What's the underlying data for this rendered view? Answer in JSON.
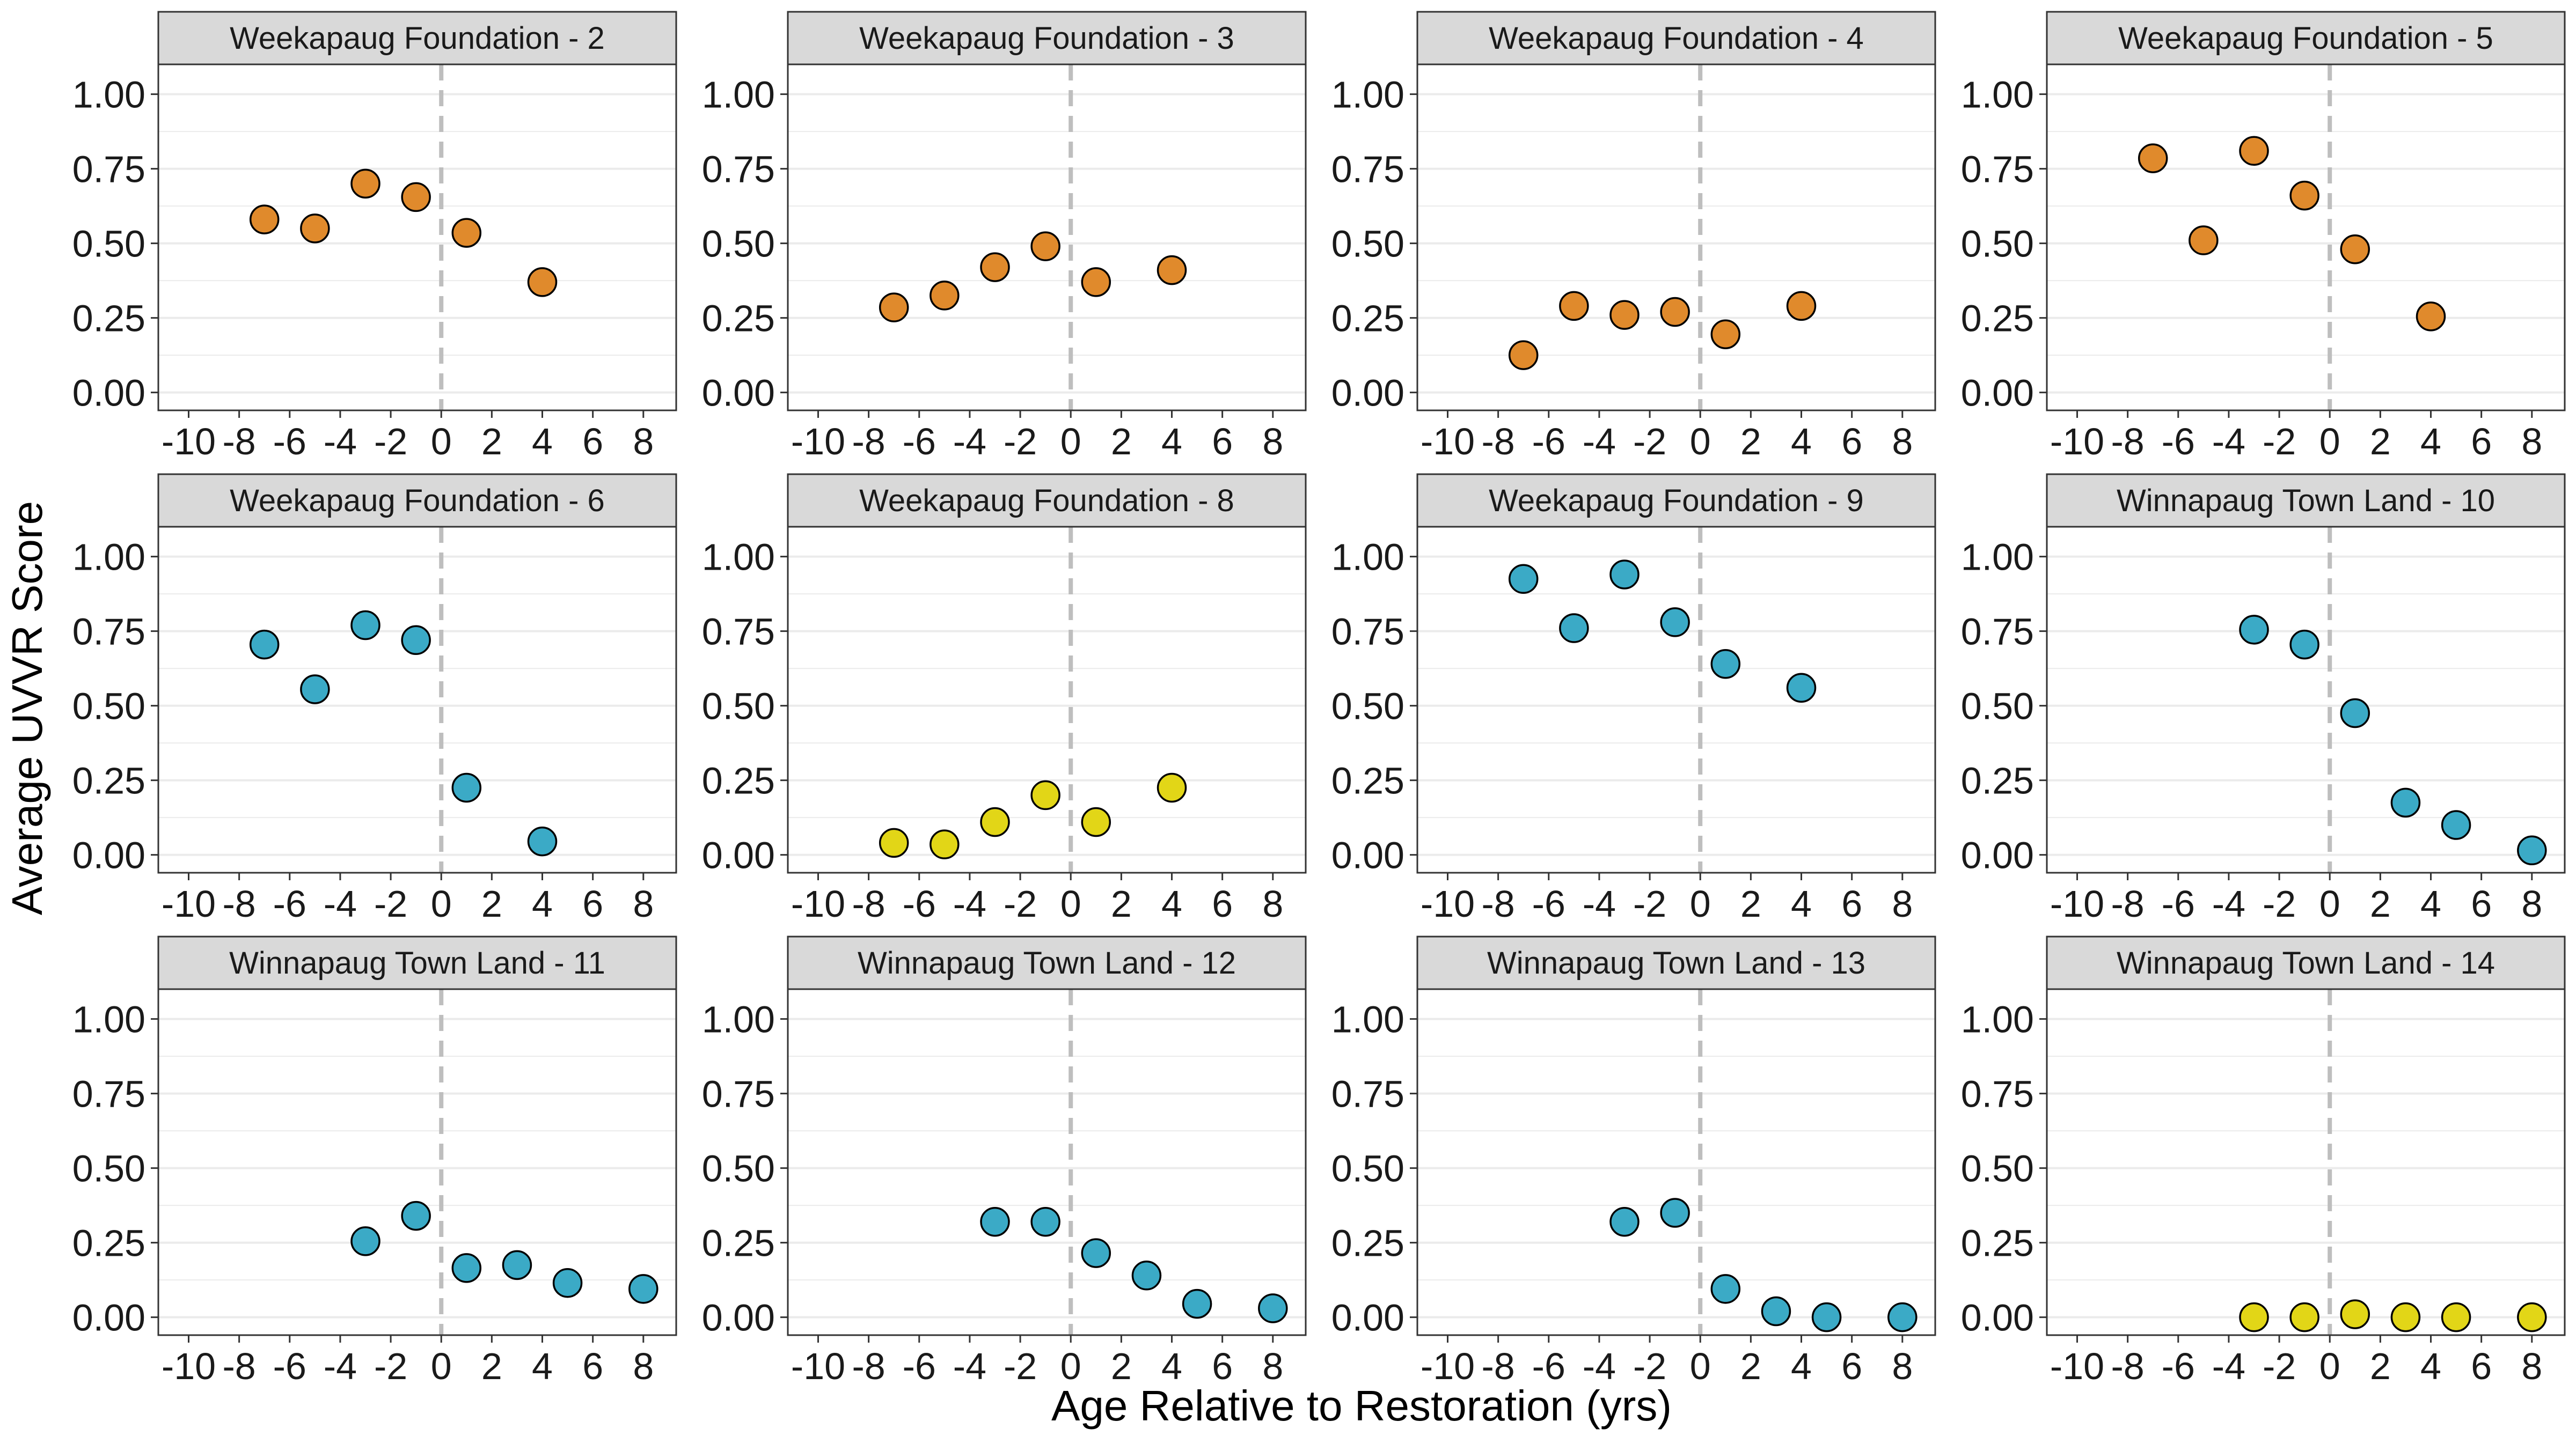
{
  "colors": {
    "orange": "#E08A2C",
    "blue": "#3BAAC6",
    "yellow": "#E2D617",
    "strip_bg": "#D9D9D9",
    "grid": "#EBEBEB",
    "dashed": "#BEBEBE"
  },
  "chart_data": {
    "type": "scatter",
    "xlabel": "Age Relative to Restoration (yrs)",
    "ylabel": "Average UVVR Score",
    "x_ticks": [
      -10,
      -8,
      -6,
      -4,
      -2,
      0,
      2,
      4,
      6,
      8
    ],
    "x_tick_labels": [
      "-10",
      "-8",
      "-6",
      "-4",
      "-2",
      "0",
      "2",
      "4",
      "6",
      "8"
    ],
    "y_ticks": [
      0,
      0.25,
      0.5,
      0.75,
      1.0
    ],
    "y_tick_labels": [
      "0.00",
      "0.25",
      "0.50",
      "0.75",
      "1.00"
    ],
    "xlim": [
      -11.2,
      9.3
    ],
    "ylim": [
      -0.06,
      1.1
    ],
    "reference_line_x": 0,
    "grid": true,
    "facets": [
      {
        "title": "Weekapaug Foundation - 2",
        "color": "orange",
        "points": [
          [
            -7,
            0.58
          ],
          [
            -5,
            0.55
          ],
          [
            -3,
            0.7
          ],
          [
            -1,
            0.655
          ],
          [
            1,
            0.535
          ],
          [
            4,
            0.37
          ]
        ]
      },
      {
        "title": "Weekapaug Foundation - 3",
        "color": "orange",
        "points": [
          [
            -7,
            0.285
          ],
          [
            -5,
            0.325
          ],
          [
            -3,
            0.42
          ],
          [
            -1,
            0.49
          ],
          [
            1,
            0.37
          ],
          [
            4,
            0.41
          ]
        ]
      },
      {
        "title": "Weekapaug Foundation - 4",
        "color": "orange",
        "points": [
          [
            -7,
            0.125
          ],
          [
            -5,
            0.29
          ],
          [
            -3,
            0.26
          ],
          [
            -1,
            0.27
          ],
          [
            1,
            0.195
          ],
          [
            4,
            0.29
          ]
        ]
      },
      {
        "title": "Weekapaug Foundation - 5",
        "color": "orange",
        "points": [
          [
            -7,
            0.785
          ],
          [
            -5,
            0.51
          ],
          [
            -3,
            0.81
          ],
          [
            -1,
            0.66
          ],
          [
            1,
            0.48
          ],
          [
            4,
            0.255
          ]
        ]
      },
      {
        "title": "Weekapaug Foundation - 6",
        "color": "blue",
        "points": [
          [
            -7,
            0.705
          ],
          [
            -5,
            0.555
          ],
          [
            -3,
            0.77
          ],
          [
            -1,
            0.72
          ],
          [
            1,
            0.225
          ],
          [
            4,
            0.045
          ]
        ]
      },
      {
        "title": "Weekapaug Foundation - 8",
        "color": "yellow",
        "points": [
          [
            -7,
            0.04
          ],
          [
            -5,
            0.035
          ],
          [
            -3,
            0.11
          ],
          [
            -1,
            0.2
          ],
          [
            1,
            0.11
          ],
          [
            4,
            0.225
          ]
        ]
      },
      {
        "title": "Weekapaug Foundation - 9",
        "color": "blue",
        "points": [
          [
            -7,
            0.925
          ],
          [
            -5,
            0.76
          ],
          [
            -3,
            0.94
          ],
          [
            -1,
            0.78
          ],
          [
            1,
            0.64
          ],
          [
            4,
            0.56
          ]
        ]
      },
      {
        "title": "Winnapaug Town Land - 10",
        "color": "blue",
        "points": [
          [
            -3,
            0.755
          ],
          [
            -1,
            0.705
          ],
          [
            1,
            0.475
          ],
          [
            3,
            0.175
          ],
          [
            5,
            0.1
          ],
          [
            8,
            0.015
          ]
        ]
      },
      {
        "title": "Winnapaug Town Land - 11",
        "color": "blue",
        "points": [
          [
            -3,
            0.255
          ],
          [
            -1,
            0.34
          ],
          [
            1,
            0.165
          ],
          [
            3,
            0.175
          ],
          [
            5,
            0.115
          ],
          [
            8,
            0.095
          ]
        ]
      },
      {
        "title": "Winnapaug Town Land - 12",
        "color": "blue",
        "points": [
          [
            -3,
            0.32
          ],
          [
            -1,
            0.32
          ],
          [
            1,
            0.215
          ],
          [
            3,
            0.14
          ],
          [
            5,
            0.045
          ],
          [
            8,
            0.03
          ]
        ]
      },
      {
        "title": "Winnapaug Town Land - 13",
        "color": "blue",
        "points": [
          [
            -3,
            0.32
          ],
          [
            -1,
            0.35
          ],
          [
            1,
            0.095
          ],
          [
            3,
            0.02
          ],
          [
            5,
            0.0
          ],
          [
            8,
            0.0
          ]
        ]
      },
      {
        "title": "Winnapaug Town Land - 14",
        "color": "yellow",
        "points": [
          [
            -3,
            0.0
          ],
          [
            -1,
            0.0
          ],
          [
            1,
            0.01
          ],
          [
            3,
            0.0
          ],
          [
            5,
            0.0
          ],
          [
            8,
            0.0
          ]
        ]
      }
    ]
  }
}
